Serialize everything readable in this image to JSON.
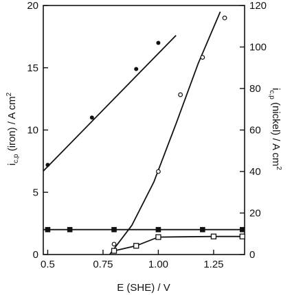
{
  "chart_data": {
    "type": "scatter",
    "xlabel": "E (SHE) / V",
    "ylabel_left": "i_c,p (iron) / A cm^2",
    "ylabel_right": "i_c,p (nickel) / A cm^2",
    "xlim": [
      0.48,
      1.39
    ],
    "ylim_left": [
      0,
      20
    ],
    "ylim_right": [
      0,
      120
    ],
    "x_ticks": [
      0.5,
      0.75,
      1.0,
      1.25
    ],
    "x_tick_labels": [
      "0.5",
      "0.75",
      "1.00",
      "1.25"
    ],
    "y_left_ticks": [
      0,
      5,
      10,
      15,
      20
    ],
    "y_left_tick_labels": [
      "0",
      "5",
      "10",
      "15",
      "20"
    ],
    "y_right_ticks": [
      0,
      20,
      40,
      60,
      80,
      100,
      120
    ],
    "y_right_tick_labels": [
      "0",
      "20",
      "40",
      "60",
      "80",
      "100",
      "120"
    ],
    "grid": false,
    "series": [
      {
        "axis": "left",
        "marker": "filled-circle",
        "x": [
          0.5,
          0.7,
          0.9,
          1.0
        ],
        "y": [
          7.2,
          11.0,
          14.9,
          17.0
        ],
        "line": {
          "x": [
            0.48,
            1.08
          ],
          "y": [
            6.7,
            17.6
          ]
        }
      },
      {
        "axis": "right",
        "marker": "open-circle",
        "x": [
          0.8,
          1.0,
          1.1,
          1.2,
          1.3
        ],
        "y": [
          5,
          40,
          77,
          95,
          114
        ],
        "line": {
          "x": [
            0.78,
            0.88,
            0.98,
            1.08,
            1.18,
            1.28
          ],
          "y": [
            0,
            14,
            35,
            63,
            92,
            117
          ]
        }
      },
      {
        "axis": "left",
        "marker": "filled-square",
        "x": [
          0.5,
          0.6,
          0.8,
          1.0,
          1.2,
          1.38
        ],
        "y": [
          2.0,
          2.0,
          2.0,
          2.0,
          2.0,
          2.0
        ],
        "line": {
          "x": [
            0.48,
            1.38
          ],
          "y": [
            2.0,
            2.0
          ]
        }
      },
      {
        "axis": "left",
        "marker": "open-square",
        "x": [
          0.8,
          0.9,
          1.0,
          1.25,
          1.38
        ],
        "y": [
          0.3,
          0.7,
          1.4,
          1.45,
          1.45
        ],
        "line": {
          "x": [
            0.8,
            0.9,
            1.0,
            1.25,
            1.38
          ],
          "y": [
            0.3,
            0.7,
            1.4,
            1.45,
            1.45
          ]
        }
      }
    ]
  }
}
